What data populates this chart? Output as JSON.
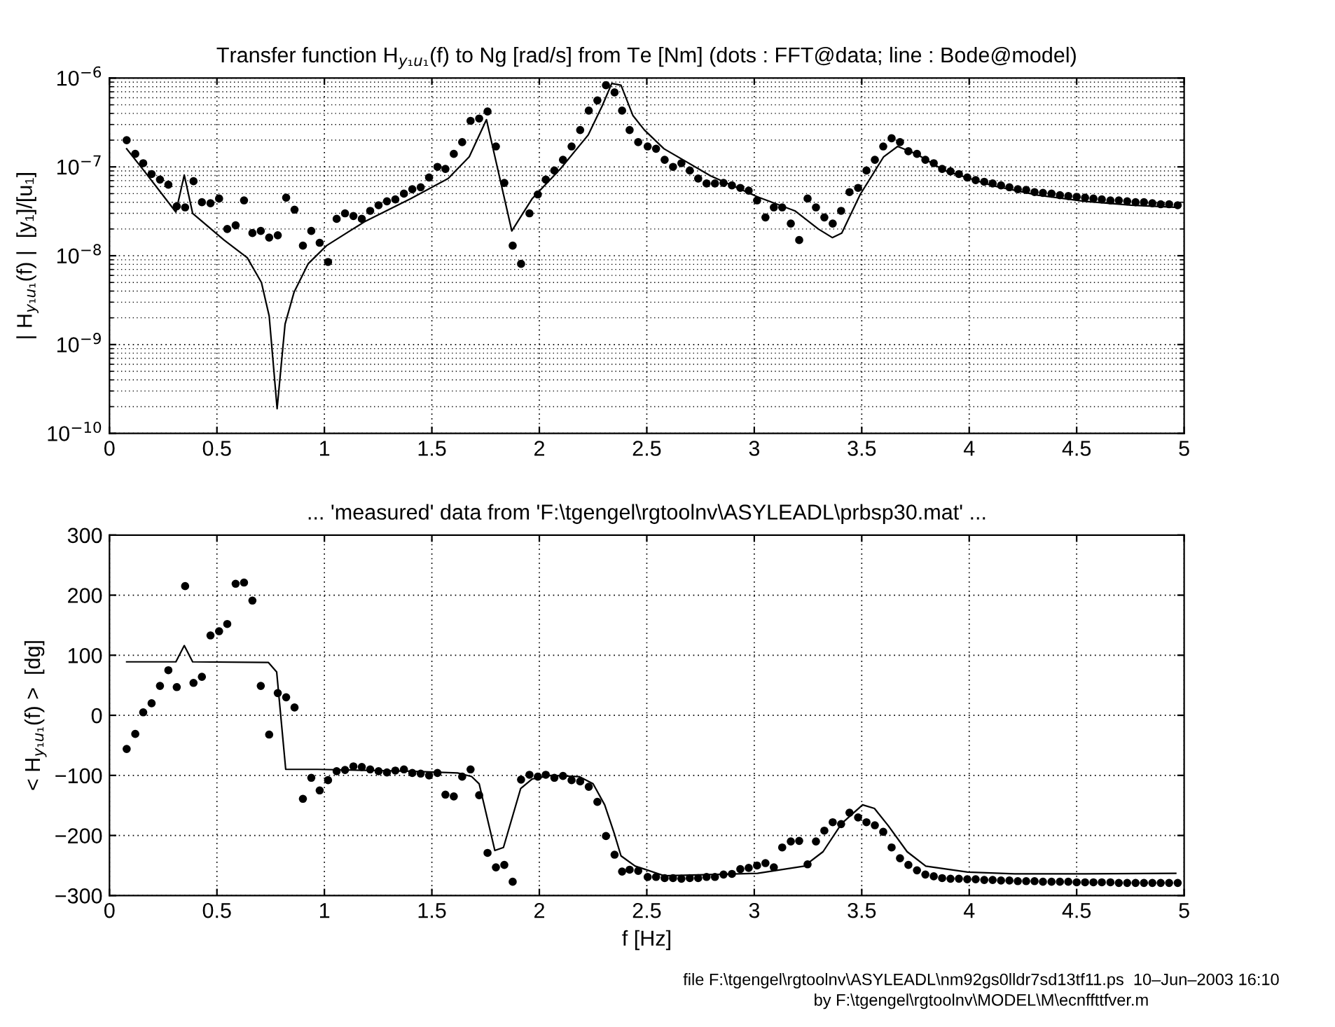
{
  "chart_data": [
    {
      "type": "scatter",
      "title": "Transfer function H$_{y₁u₁}$(f) to Ng [rad/s] from Te [Nm] (dots : FFT@data; line : Bode@model)",
      "ylabel": "| H$_{y₁u₁}$(f) |  [y₁]/[u₁]",
      "log": "y",
      "grid": true,
      "xlim": [
        0,
        5
      ],
      "xticks": [
        0,
        0.5,
        1,
        1.5,
        2,
        2.5,
        3,
        3.5,
        4,
        4.5,
        5
      ],
      "ylim": [
        1e-10,
        1e-06
      ],
      "yticks": [
        {
          "value": 1e-10,
          "label": "10$^{−10}$"
        },
        {
          "value": 1e-09,
          "label": "10$^{−9}$"
        },
        {
          "value": 1e-08,
          "label": "10$^{−8}$"
        },
        {
          "value": 1e-07,
          "label": "10$^{−7}$"
        },
        {
          "value": 1e-06,
          "label": "10$^{−6}$"
        }
      ],
      "series": [
        {
          "marker": "circle",
          "color": "#000000",
          "x": [
            0.08,
            0.12,
            0.157,
            0.196,
            0.235,
            0.274,
            0.313,
            0.352,
            0.391,
            0.43,
            0.47,
            0.51,
            0.548,
            0.587,
            0.626,
            0.665,
            0.704,
            0.743,
            0.783,
            0.822,
            0.861,
            0.9,
            0.939,
            0.978,
            1.017,
            1.057,
            1.096,
            1.135,
            1.174,
            1.213,
            1.252,
            1.291,
            1.33,
            1.37,
            1.409,
            1.448,
            1.487,
            1.526,
            1.563,
            1.602,
            1.641,
            1.68,
            1.72,
            1.759,
            1.798,
            1.837,
            1.876,
            1.915,
            1.954,
            1.993,
            2.03,
            2.07,
            2.11,
            2.15,
            2.19,
            2.23,
            2.27,
            2.31,
            2.35,
            2.385,
            2.42,
            2.46,
            2.504,
            2.543,
            2.583,
            2.622,
            2.661,
            2.7,
            2.739,
            2.778,
            2.817,
            2.857,
            2.896,
            2.935,
            2.974,
            3.013,
            3.052,
            3.091,
            3.13,
            3.17,
            3.209,
            3.248,
            3.287,
            3.326,
            3.365,
            3.404,
            3.443,
            3.483,
            3.522,
            3.561,
            3.6,
            3.639,
            3.678,
            3.717,
            3.757,
            3.796,
            3.835,
            3.874,
            3.913,
            3.952,
            3.991,
            4.03,
            4.07,
            4.109,
            4.148,
            4.187,
            4.226,
            4.265,
            4.304,
            4.343,
            4.383,
            4.422,
            4.461,
            4.5,
            4.539,
            4.578,
            4.617,
            4.657,
            4.696,
            4.735,
            4.774,
            4.813,
            4.852,
            4.891,
            4.93,
            4.97
          ],
          "values": [
            2e-07,
            1.4e-07,
            1.1e-07,
            8.3e-08,
            7.2e-08,
            6.3e-08,
            3.6e-08,
            3.5e-08,
            6.9e-08,
            4e-08,
            3.9e-08,
            4.4e-08,
            2e-08,
            2.2e-08,
            4.2e-08,
            1.8e-08,
            1.9e-08,
            1.6e-08,
            1.7e-08,
            4.5e-08,
            3.3e-08,
            1.3e-08,
            1.9e-08,
            1.4e-08,
            8.5e-09,
            2.6e-08,
            3e-08,
            2.8e-08,
            2.6e-08,
            3.2e-08,
            3.7e-08,
            4.1e-08,
            4.3e-08,
            5e-08,
            5.6e-08,
            5.9e-08,
            7.6e-08,
            1e-07,
            9.5e-08,
            1.4e-07,
            1.9e-07,
            3.3e-07,
            3.5e-07,
            4.2e-07,
            1.7e-07,
            6.6e-08,
            1.3e-08,
            8.1e-09,
            3e-08,
            4.9e-08,
            7.2e-08,
            9.1e-08,
            1.2e-07,
            1.7e-07,
            2.6e-07,
            4.3e-07,
            5.6e-07,
            8.3e-07,
            6.9e-07,
            4.3e-07,
            2.6e-07,
            1.9e-07,
            1.7e-07,
            1.6e-07,
            1.2e-07,
            1e-07,
            1.1e-07,
            9.1e-08,
            7.4e-08,
            6.5e-08,
            6.5e-08,
            6.6e-08,
            6.2e-08,
            5.8e-08,
            5.4e-08,
            4.2e-08,
            2.7e-08,
            3.5e-08,
            3.5e-08,
            2.3e-08,
            1.5e-08,
            4.4e-08,
            3.5e-08,
            2.7e-08,
            2.3e-08,
            3.2e-08,
            5.2e-08,
            5.8e-08,
            9.1e-08,
            1.2e-07,
            1.7e-07,
            2.1e-07,
            1.9e-07,
            1.5e-07,
            1.4e-07,
            1.2e-07,
            1.1e-07,
            9.5e-08,
            8.9e-08,
            8.3e-08,
            7.6e-08,
            7.1e-08,
            6.8e-08,
            6.5e-08,
            6.2e-08,
            5.9e-08,
            5.6e-08,
            5.5e-08,
            5.2e-08,
            5.1e-08,
            5e-08,
            4.8e-08,
            4.7e-08,
            4.6e-08,
            4.5e-08,
            4.4e-08,
            4.3e-08,
            4.2e-08,
            4.2e-08,
            4.1e-08,
            4e-08,
            4e-08,
            3.9e-08,
            3.8e-08,
            3.8e-08,
            3.7e-08
          ]
        },
        {
          "type": "line",
          "line_style": "solid",
          "color": "#000000",
          "x": [
            0.08,
            0.163,
            0.309,
            0.348,
            0.387,
            0.533,
            0.641,
            0.707,
            0.743,
            0.78,
            0.817,
            0.859,
            0.924,
            1.01,
            1.185,
            1.402,
            1.576,
            1.674,
            1.754,
            1.872,
            1.967,
            2.098,
            2.228,
            2.293,
            2.337,
            2.38,
            2.435,
            2.489,
            2.58,
            2.798,
            3.015,
            3.189,
            3.298,
            3.363,
            3.407,
            3.493,
            3.602,
            3.667,
            3.754,
            3.885,
            4.102,
            4.32,
            4.537,
            4.754,
            4.97
          ],
          "values": [
            1.6e-07,
            8.9e-08,
            3.1e-08,
            8.1e-08,
            3e-08,
            1.5e-08,
            9.5e-09,
            5e-09,
            2.1e-09,
            1.9e-10,
            1.7e-09,
            3.9e-09,
            8.1e-09,
            1.3e-08,
            2.4e-08,
            4.4e-08,
            7.4e-08,
            1.3e-07,
            3.4e-07,
            1.9e-08,
            4.4e-08,
            9.5e-08,
            2.3e-07,
            4.9e-07,
            8.7e-07,
            8.3e-07,
            3.8e-07,
            2.6e-07,
            1.6e-07,
            7.9e-08,
            4.6e-08,
            3.2e-08,
            2e-08,
            1.6e-08,
            1.8e-08,
            4.9e-08,
            1.3e-07,
            1.7e-07,
            1.4e-07,
            9.1e-08,
            6.2e-08,
            4.8e-08,
            4.1e-08,
            3.7e-08,
            3.5e-08
          ]
        }
      ]
    },
    {
      "type": "scatter",
      "title": "... 'measured' data from 'F:\\tgengel\\rgtoolnv\\ASYLEADL\\prbsp30.mat' ...",
      "xlabel": "f [Hz]",
      "ylabel": "< H$_{y₁u₁}$(f) >  [dg]",
      "grid": true,
      "xlim": [
        0,
        5
      ],
      "xticks": [
        0,
        0.5,
        1,
        1.5,
        2,
        2.5,
        3,
        3.5,
        4,
        4.5,
        5
      ],
      "ylim": [
        -300,
        300
      ],
      "yticks": [
        {
          "value": -300,
          "label": "−300"
        },
        {
          "value": -200,
          "label": "−200"
        },
        {
          "value": -100,
          "label": "−100"
        },
        0,
        100,
        200,
        300
      ],
      "annotations": [
        "file F:\\tgengel\\rgtoolnv\\ASYLEADL\\nm92gs0lldr7sd13tf11.ps  10–Jun–2003 16:10",
        "by F:\\tgengel\\rgtoolnv\\MODEL\\M\\ecnffttfver.m"
      ],
      "series": [
        {
          "marker": "circle",
          "color": "#000000",
          "x": [
            0.08,
            0.12,
            0.157,
            0.196,
            0.235,
            0.274,
            0.313,
            0.352,
            0.391,
            0.43,
            0.47,
            0.51,
            0.548,
            0.587,
            0.626,
            0.665,
            0.704,
            0.743,
            0.783,
            0.822,
            0.861,
            0.9,
            0.939,
            0.978,
            1.017,
            1.057,
            1.096,
            1.135,
            1.174,
            1.213,
            1.252,
            1.291,
            1.33,
            1.37,
            1.409,
            1.448,
            1.487,
            1.526,
            1.563,
            1.602,
            1.641,
            1.68,
            1.72,
            1.759,
            1.798,
            1.837,
            1.876,
            1.915,
            1.954,
            1.993,
            2.03,
            2.07,
            2.11,
            2.15,
            2.19,
            2.23,
            2.27,
            2.31,
            2.35,
            2.385,
            2.42,
            2.46,
            2.504,
            2.543,
            2.583,
            2.622,
            2.661,
            2.7,
            2.739,
            2.778,
            2.817,
            2.857,
            2.896,
            2.935,
            2.974,
            3.013,
            3.052,
            3.091,
            3.13,
            3.17,
            3.209,
            3.248,
            3.287,
            3.326,
            3.365,
            3.404,
            3.443,
            3.483,
            3.522,
            3.561,
            3.6,
            3.639,
            3.678,
            3.717,
            3.757,
            3.796,
            3.835,
            3.874,
            3.913,
            3.952,
            3.991,
            4.03,
            4.07,
            4.109,
            4.148,
            4.187,
            4.226,
            4.265,
            4.304,
            4.343,
            4.383,
            4.422,
            4.461,
            4.5,
            4.539,
            4.578,
            4.617,
            4.657,
            4.696,
            4.735,
            4.774,
            4.813,
            4.852,
            4.891,
            4.93,
            4.97
          ],
          "values": [
            -56,
            -31,
            5,
            20,
            49,
            75,
            47,
            215,
            54,
            64,
            133,
            140,
            152,
            219,
            221,
            191,
            49,
            -32,
            37,
            30,
            13,
            -139,
            -104,
            -125,
            -108,
            -93,
            -91,
            -85,
            -86,
            -90,
            -93,
            -95,
            -92,
            -90,
            -96,
            -97,
            -100,
            -96,
            -132,
            -135,
            -102,
            -90,
            -133,
            -229,
            -253,
            -249,
            -277,
            -107,
            -99,
            -102,
            -99,
            -104,
            -101,
            -108,
            -110,
            -119,
            -144,
            -201,
            -232,
            -260,
            -257,
            -259,
            -269,
            -269,
            -271,
            -271,
            -272,
            -271,
            -271,
            -269,
            -269,
            -265,
            -264,
            -256,
            -254,
            -250,
            -246,
            -253,
            -220,
            -210,
            -209,
            -248,
            -210,
            -192,
            -178,
            -181,
            -162,
            -170,
            -178,
            -183,
            -194,
            -220,
            -238,
            -249,
            -258,
            -265,
            -268,
            -271,
            -272,
            -272,
            -273,
            -273,
            -274,
            -274,
            -275,
            -275,
            -276,
            -276,
            -276,
            -277,
            -277,
            -277,
            -277,
            -278,
            -278,
            -278,
            -278,
            -278,
            -279,
            -279,
            -279,
            -279,
            -279,
            -279,
            -279,
            -279
          ]
        },
        {
          "type": "line",
          "line_style": "solid",
          "color": "#000000",
          "x": [
            0.08,
            0.309,
            0.348,
            0.387,
            0.739,
            0.778,
            0.82,
            0.967,
            1.402,
            1.62,
            1.685,
            1.72,
            1.793,
            1.833,
            1.913,
            1.967,
            2.054,
            2.185,
            2.25,
            2.304,
            2.348,
            2.38,
            2.446,
            2.489,
            2.58,
            2.798,
            3.015,
            3.232,
            3.32,
            3.407,
            3.504,
            3.559,
            3.624,
            3.711,
            3.798,
            3.993,
            4.211,
            4.537,
            4.961
          ],
          "values": [
            89,
            89,
            116,
            89,
            88,
            72,
            -90,
            -90,
            -93,
            -96,
            -102,
            -114,
            -225,
            -220,
            -122,
            -106,
            -100,
            -102,
            -114,
            -149,
            -196,
            -234,
            -251,
            -256,
            -267,
            -265,
            -263,
            -251,
            -227,
            -180,
            -149,
            -155,
            -184,
            -227,
            -251,
            -261,
            -264,
            -264,
            -263
          ]
        }
      ]
    }
  ]
}
